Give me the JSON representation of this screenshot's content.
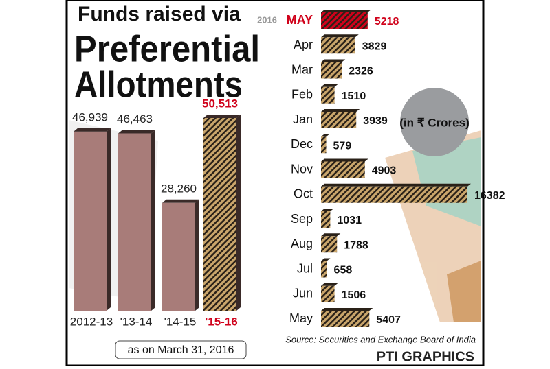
{
  "chart_data": [
    {
      "type": "bar",
      "title": [
        "Funds raised via",
        "Preferential",
        "Allotments"
      ],
      "categories": [
        "2012-13",
        "'13-14",
        "'14-15",
        "'15-16"
      ],
      "values": [
        46939,
        46463,
        28260,
        50513
      ],
      "value_labels": [
        "46,939",
        "46,463",
        "28,260",
        "50,513"
      ],
      "colors": [
        "#a87c79",
        "#a87c79",
        "#a87c79",
        "#c9a56b"
      ],
      "striped": [
        false,
        false,
        false,
        true
      ],
      "label_colors": [
        "#222222",
        "#222222",
        "#222222",
        "#d0021b"
      ],
      "annotation": "as on March 31, 2016"
    },
    {
      "type": "hbar",
      "year_label": "2016",
      "categories": [
        "MAY",
        "Apr",
        "Mar",
        "Feb",
        "Jan",
        "Dec",
        "Nov",
        "Oct",
        "Sep",
        "Aug",
        "Jul",
        "Jun",
        "May"
      ],
      "values": [
        5218,
        3829,
        2326,
        1510,
        3939,
        579,
        4903,
        16382,
        1031,
        1788,
        658,
        1506,
        5407
      ],
      "colors": [
        "#d0021b",
        "#c9a56b",
        "#c9a56b",
        "#c9a56b",
        "#c9a56b",
        "#c9a56b",
        "#c9a56b",
        "#c9a56b",
        "#c9a56b",
        "#c9a56b",
        "#c9a56b",
        "#c9a56b",
        "#c9a56b"
      ],
      "label_colors": [
        "#d0021b",
        "#111111",
        "#111111",
        "#111111",
        "#111111",
        "#111111",
        "#111111",
        "#111111",
        "#111111",
        "#111111",
        "#111111",
        "#111111",
        "#111111"
      ],
      "unit_note": "(in ₹ Crores)",
      "source": "Source: Securities and Exchange Board of India",
      "credit": "PTI GRAPHICS"
    }
  ]
}
